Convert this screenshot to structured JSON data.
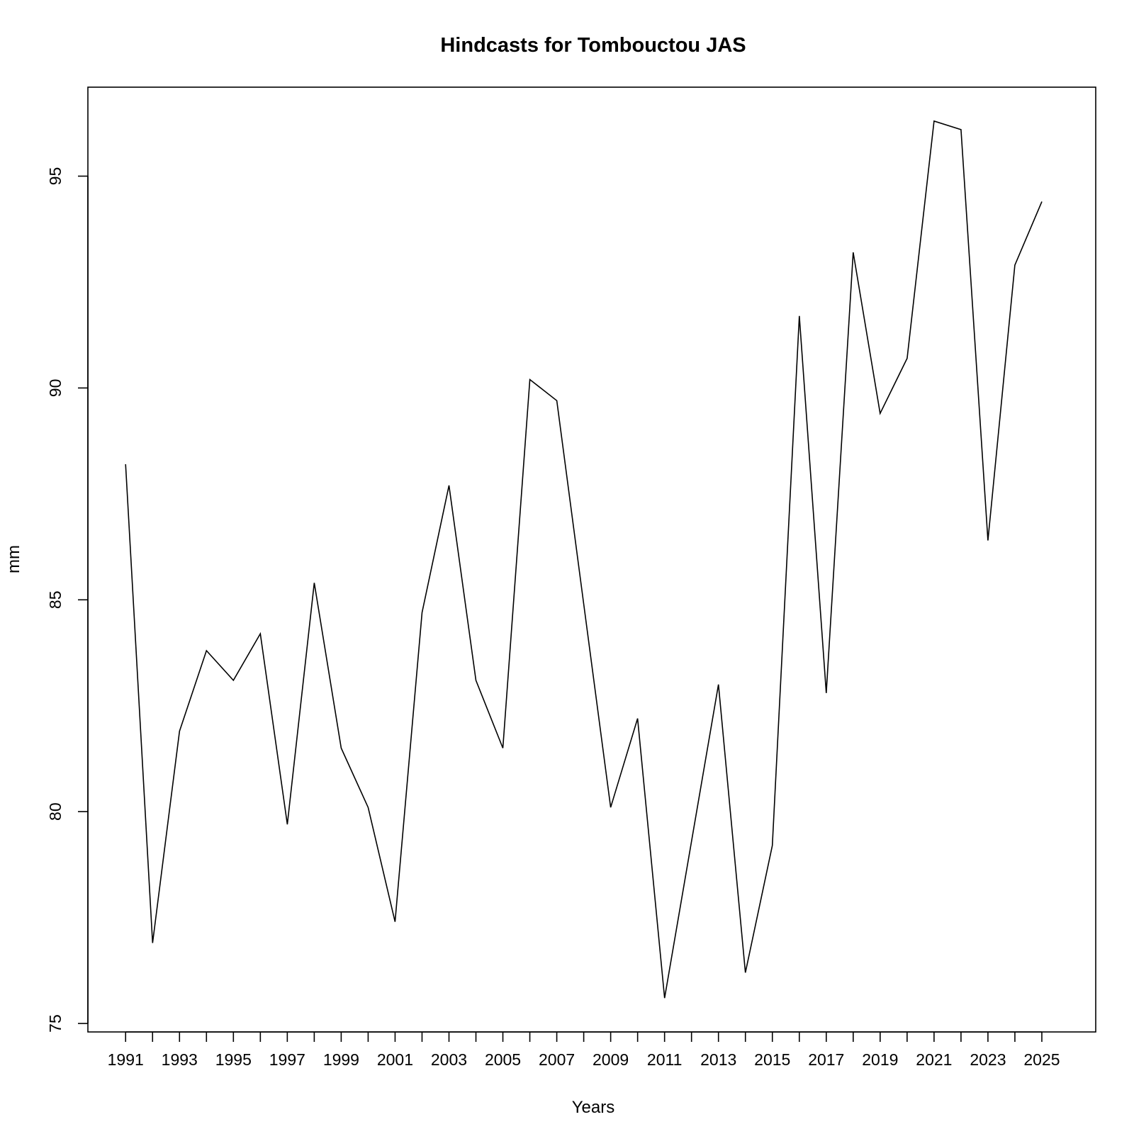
{
  "chart_data": {
    "type": "line",
    "title": "Hindcasts for Tombouctou JAS",
    "xlabel": "Years",
    "ylabel": "mm",
    "x": [
      1991,
      1992,
      1993,
      1994,
      1995,
      1996,
      1997,
      1998,
      1999,
      2000,
      2001,
      2002,
      2003,
      2004,
      2005,
      2006,
      2007,
      2008,
      2009,
      2010,
      2011,
      2012,
      2013,
      2014,
      2015,
      2016,
      2017,
      2018,
      2019,
      2020,
      2021,
      2022,
      2023,
      2024,
      2025
    ],
    "series": [
      {
        "values": [
          88.2,
          76.9,
          81.9,
          83.8,
          83.1,
          84.2,
          79.7,
          85.4,
          81.5,
          80.1,
          77.4,
          84.7,
          87.7,
          83.1,
          81.5,
          90.2,
          89.7,
          84.9,
          80.1,
          82.2,
          75.6,
          79.3,
          83.0,
          76.2,
          79.2,
          91.7,
          82.8,
          93.2,
          89.4,
          90.7,
          96.3,
          96.1,
          86.4,
          92.9,
          94.4
        ]
      }
    ],
    "xticks": [
      "1991",
      "1993",
      "1995",
      "1997",
      "1999",
      "2001",
      "2003",
      "2005",
      "2007",
      "2009",
      "2011",
      "2013",
      "2015",
      "2017",
      "2019",
      "2021",
      "2023",
      "2025"
    ],
    "yticks": [
      "75",
      "80",
      "85",
      "90",
      "95"
    ],
    "xlim": [
      1989.6,
      2027.0
    ],
    "ylim": [
      74.8,
      97.1
    ],
    "grid": false,
    "legend": "none",
    "line_color": "#000000"
  }
}
